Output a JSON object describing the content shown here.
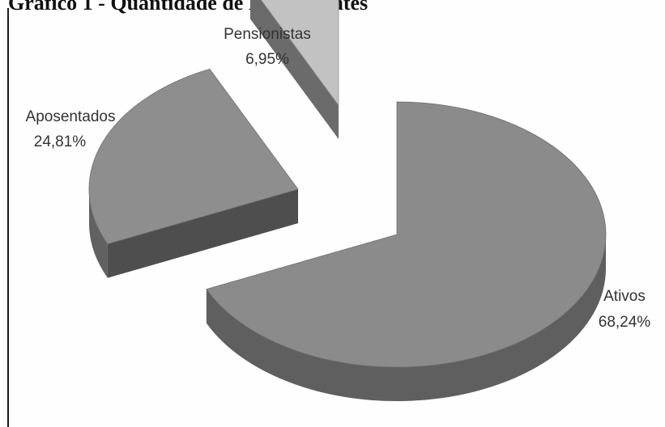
{
  "figure": {
    "caption": "Gráfico 1 - Quantidade de Participantes"
  },
  "chart_data": {
    "type": "pie",
    "title": "Gráfico 1 - Quantidade de Participantes",
    "categories": [
      "Ativos",
      "Aposentados",
      "Pensionistas"
    ],
    "values": [
      68.24,
      24.81,
      6.95
    ],
    "value_labels": [
      "68,24%",
      "24,81%",
      "6,95%"
    ],
    "unit": "%",
    "exploded": true,
    "three_d": true,
    "legend": "none",
    "colors": {
      "Ativos": "#8b8b8b",
      "Aposentados": "#8e8e8e",
      "Pensionistas": "#c2c2c2"
    }
  }
}
